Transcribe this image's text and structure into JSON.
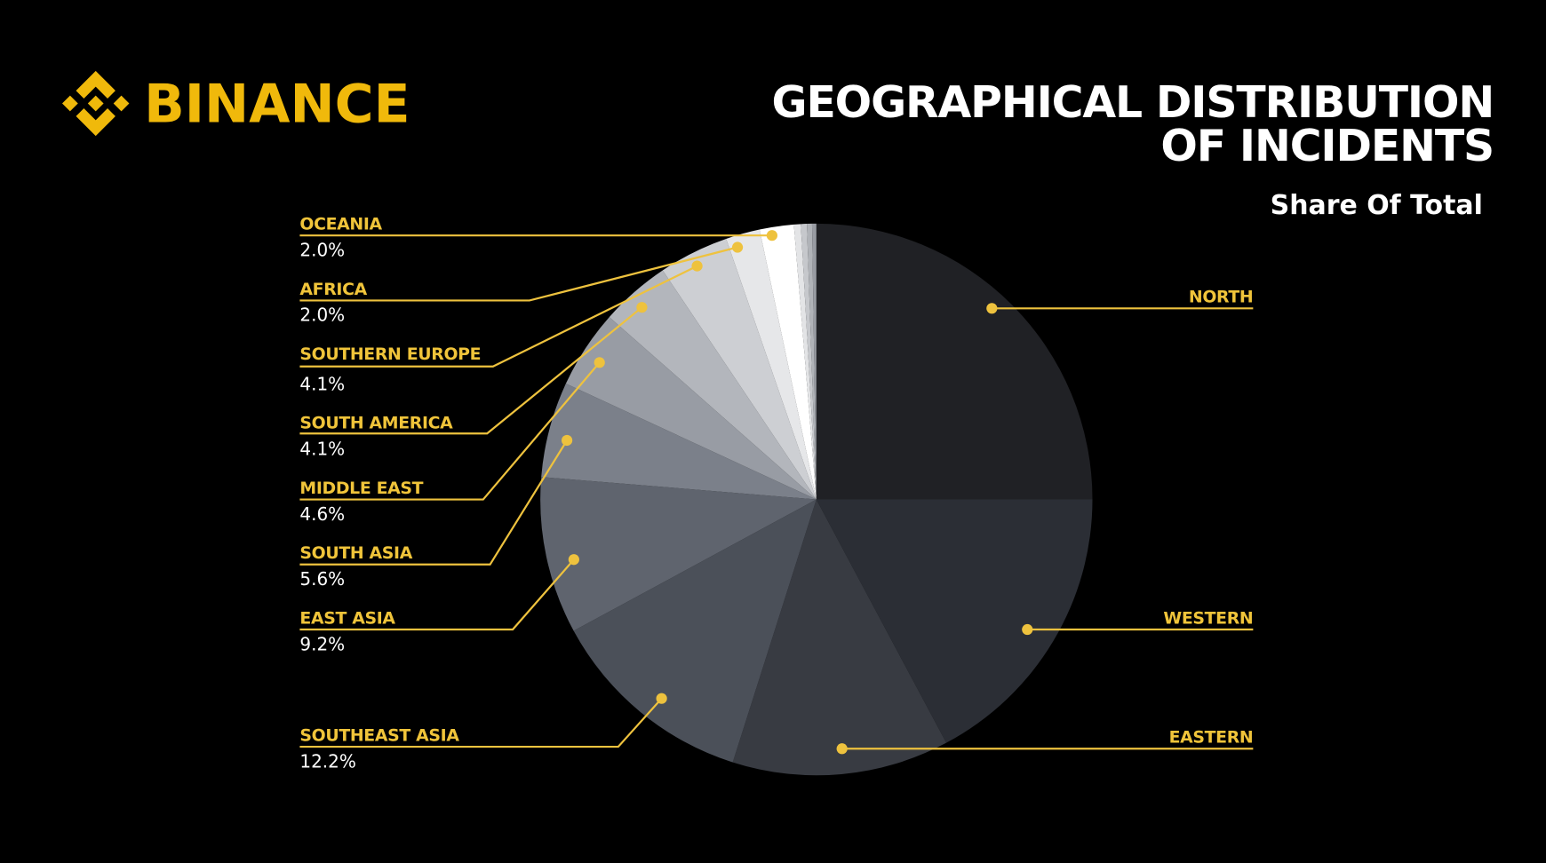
{
  "brand": {
    "name": "BINANCE",
    "color": "#F0B90B",
    "icon": "binance-diamond-logo"
  },
  "title_line1": "GEOGRAPHICAL DISTRIBUTION",
  "title_line2": "OF INCIDENTS",
  "subtitle": "Share Of Total",
  "accent_color": "#EEC23E",
  "chart_data": {
    "type": "pie",
    "title": "GEOGRAPHICAL DISTRIBUTION OF INCIDENTS",
    "subtitle": "Share Of Total",
    "start": "12 o'clock, clockwise",
    "slices": [
      {
        "label": "NORTH",
        "value": 25.0,
        "value_shown": false,
        "color": "#202125"
      },
      {
        "label": "WESTERN",
        "value": 17.2,
        "value_shown": false,
        "color": "#2B2E35"
      },
      {
        "label": "EASTERN",
        "value": 12.7,
        "value_shown": false,
        "color": "#383B42"
      },
      {
        "label": "SOUTHEAST ASIA",
        "value": 12.2,
        "pct": "12.2%",
        "color": "#4B5059"
      },
      {
        "label": "EAST ASIA",
        "value": 9.2,
        "pct": "9.2%",
        "color": "#5F646E"
      },
      {
        "label": "SOUTH ASIA",
        "value": 5.6,
        "pct": "5.6%",
        "color": "#7B808A"
      },
      {
        "label": "MIDDLE EAST",
        "value": 4.6,
        "pct": "4.6%",
        "color": "#989CA4"
      },
      {
        "label": "SOUTH AMERICA",
        "value": 4.1,
        "pct": "4.1%",
        "color": "#B3B6BC"
      },
      {
        "label": "SOUTHERN EUROPE",
        "value": 4.1,
        "pct": "4.1%",
        "color": "#CDCFD3"
      },
      {
        "label": "AFRICA",
        "value": 2.0,
        "pct": "2.0%",
        "color": "#E6E7E9"
      },
      {
        "label": "OCEANIA",
        "value": 2.0,
        "pct": "2.0%",
        "color": "#FFFFFF"
      },
      {
        "label": "",
        "value": 0.4,
        "color": "#E3E4E6"
      },
      {
        "label": "",
        "value": 0.35,
        "color": "#C6C8CC"
      },
      {
        "label": "",
        "value": 0.3,
        "color": "#B0B3B8"
      },
      {
        "label": "",
        "value": 0.25,
        "color": "#999CA3"
      }
    ]
  }
}
